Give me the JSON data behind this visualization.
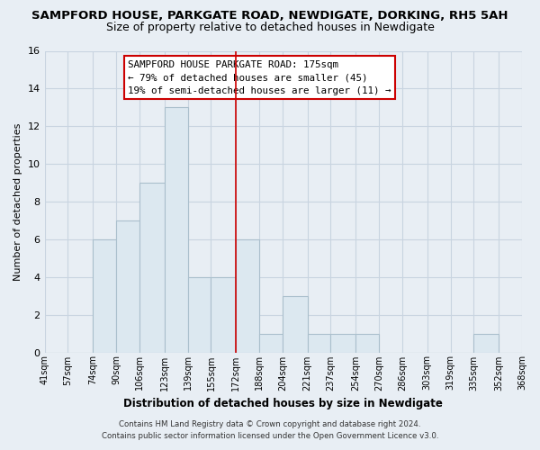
{
  "title": "SAMPFORD HOUSE, PARKGATE ROAD, NEWDIGATE, DORKING, RH5 5AH",
  "subtitle": "Size of property relative to detached houses in Newdigate",
  "xlabel": "Distribution of detached houses by size in Newdigate",
  "ylabel": "Number of detached properties",
  "bar_color": "#dce8f0",
  "bar_edgecolor": "#aabfcc",
  "bin_labels": [
    "41sqm",
    "57sqm",
    "74sqm",
    "90sqm",
    "106sqm",
    "123sqm",
    "139sqm",
    "155sqm",
    "172sqm",
    "188sqm",
    "204sqm",
    "221sqm",
    "237sqm",
    "254sqm",
    "270sqm",
    "286sqm",
    "303sqm",
    "319sqm",
    "335sqm",
    "352sqm",
    "368sqm"
  ],
  "bin_edges": [
    41,
    57,
    74,
    90,
    106,
    123,
    139,
    155,
    172,
    188,
    204,
    221,
    237,
    254,
    270,
    286,
    303,
    319,
    335,
    352,
    368
  ],
  "bar_heights": [
    0,
    0,
    6,
    7,
    9,
    13,
    4,
    4,
    6,
    1,
    3,
    1,
    1,
    1,
    0,
    0,
    0,
    0,
    1,
    0
  ],
  "ylim": [
    0,
    16
  ],
  "yticks": [
    0,
    2,
    4,
    6,
    8,
    10,
    12,
    14,
    16
  ],
  "vline_x": 172,
  "vline_color": "#cc0000",
  "annotation_title": "SAMPFORD HOUSE PARKGATE ROAD: 175sqm",
  "annotation_line2": "← 79% of detached houses are smaller (45)",
  "annotation_line3": "19% of semi-detached houses are larger (11) →",
  "annotation_box_edgecolor": "#cc0000",
  "annotation_box_facecolor": "#ffffff",
  "footer_line1": "Contains HM Land Registry data © Crown copyright and database right 2024.",
  "footer_line2": "Contains public sector information licensed under the Open Government Licence v3.0.",
  "background_color": "#e8eef4",
  "grid_color": "#c8d4e0",
  "title_fontsize": 9.5,
  "subtitle_fontsize": 9
}
